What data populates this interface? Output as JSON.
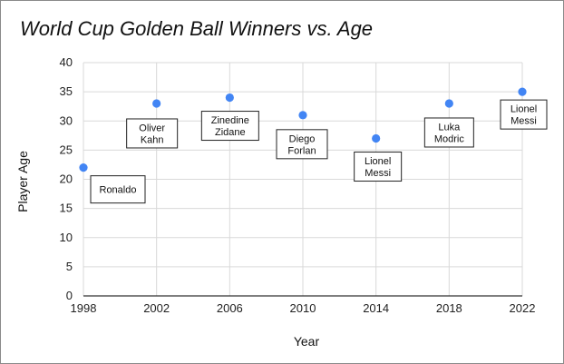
{
  "chart_data": {
    "type": "scatter",
    "title": "World Cup Golden Ball Winners vs. Age",
    "xlabel": "Year",
    "ylabel": "Player Age",
    "xlim": [
      1998,
      2022
    ],
    "ylim": [
      0,
      40
    ],
    "x_ticks": [
      "1998",
      "2002",
      "2006",
      "2010",
      "2014",
      "2018",
      "2022"
    ],
    "y_ticks": [
      "0",
      "5",
      "10",
      "15",
      "20",
      "25",
      "30",
      "35",
      "40"
    ],
    "grid": true,
    "point_color": "#4285f4",
    "points": [
      {
        "x": 1998,
        "y": 22,
        "label": [
          "Ronaldo"
        ]
      },
      {
        "x": 2002,
        "y": 33,
        "label": [
          "Oliver",
          "Kahn"
        ]
      },
      {
        "x": 2006,
        "y": 34,
        "label": [
          "Zinedine",
          "Zidane"
        ]
      },
      {
        "x": 2010,
        "y": 31,
        "label": [
          "Diego",
          "Forlan"
        ]
      },
      {
        "x": 2014,
        "y": 27,
        "label": [
          "Lionel",
          "Messi"
        ]
      },
      {
        "x": 2018,
        "y": 33,
        "label": [
          "Luka",
          "Modric"
        ]
      },
      {
        "x": 2022,
        "y": 35,
        "label": [
          "Lionel",
          "Messi"
        ]
      }
    ]
  }
}
